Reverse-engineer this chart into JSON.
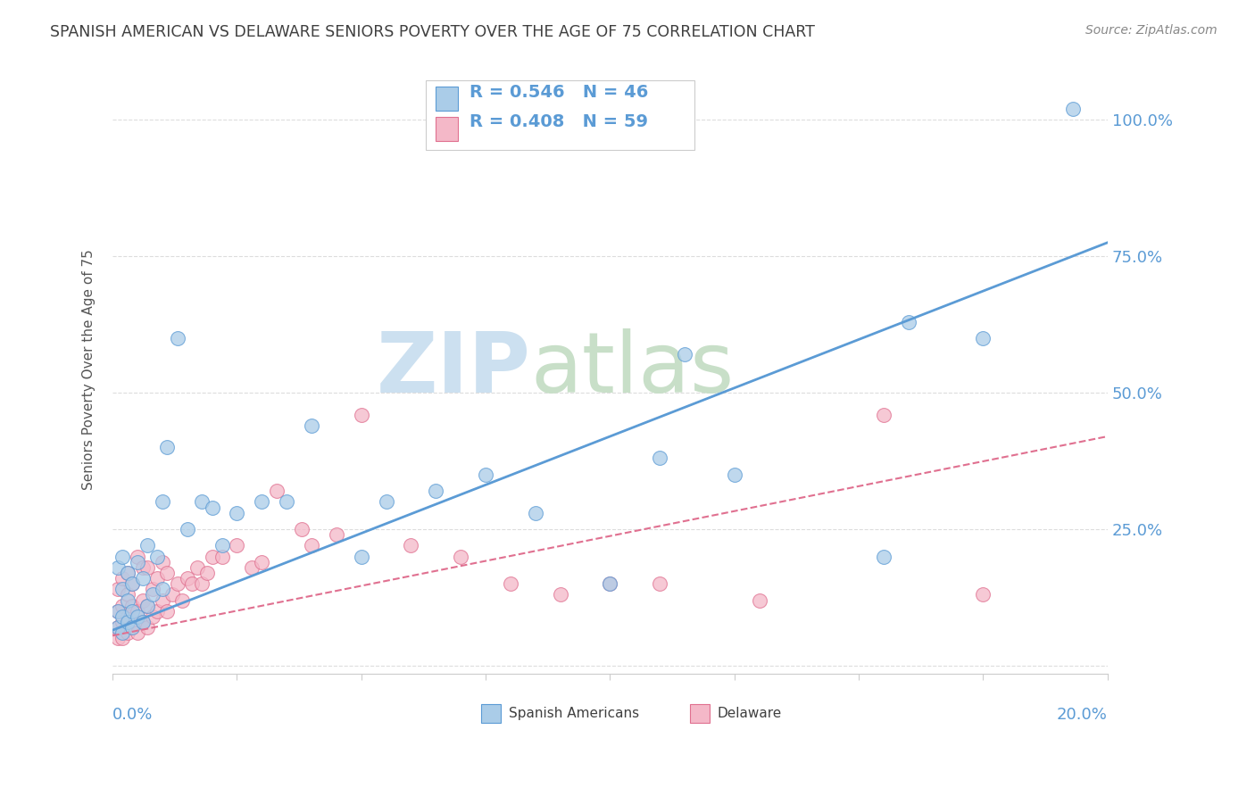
{
  "title": "SPANISH AMERICAN VS DELAWARE SENIORS POVERTY OVER THE AGE OF 75 CORRELATION CHART",
  "source": "Source: ZipAtlas.com",
  "ylabel": "Seniors Poverty Over the Age of 75",
  "blue_color": "#aacce8",
  "blue_edge_color": "#5b9bd5",
  "pink_color": "#f4b8c8",
  "pink_edge_color": "#e07090",
  "blue_line_color": "#5b9bd5",
  "pink_line_color": "#e07090",
  "axis_label_color": "#5b9bd5",
  "title_color": "#404040",
  "source_color": "#888888",
  "grid_color": "#dddddd",
  "spine_color": "#cccccc",
  "watermark_zip_color": "#cce0f0",
  "watermark_atlas_color": "#c8dfc8",
  "legend_r1": "R = 0.546",
  "legend_n1": "N = 46",
  "legend_r2": "R = 0.408",
  "legend_n2": "N = 59",
  "sp_x": [
    0.001,
    0.001,
    0.001,
    0.002,
    0.002,
    0.002,
    0.002,
    0.003,
    0.003,
    0.003,
    0.004,
    0.004,
    0.004,
    0.005,
    0.005,
    0.006,
    0.006,
    0.007,
    0.007,
    0.008,
    0.009,
    0.01,
    0.01,
    0.011,
    0.013,
    0.015,
    0.018,
    0.02,
    0.022,
    0.025,
    0.03,
    0.035,
    0.04,
    0.05,
    0.055,
    0.065,
    0.075,
    0.085,
    0.1,
    0.11,
    0.115,
    0.125,
    0.155,
    0.16,
    0.175,
    0.193
  ],
  "sp_y": [
    0.07,
    0.1,
    0.18,
    0.06,
    0.09,
    0.14,
    0.2,
    0.08,
    0.12,
    0.17,
    0.07,
    0.1,
    0.15,
    0.09,
    0.19,
    0.08,
    0.16,
    0.11,
    0.22,
    0.13,
    0.2,
    0.14,
    0.3,
    0.4,
    0.6,
    0.25,
    0.3,
    0.29,
    0.22,
    0.28,
    0.3,
    0.3,
    0.44,
    0.2,
    0.3,
    0.32,
    0.35,
    0.28,
    0.15,
    0.38,
    0.57,
    0.35,
    0.2,
    0.63,
    0.6,
    1.02
  ],
  "del_x": [
    0.001,
    0.001,
    0.001,
    0.001,
    0.002,
    0.002,
    0.002,
    0.002,
    0.003,
    0.003,
    0.003,
    0.003,
    0.004,
    0.004,
    0.004,
    0.005,
    0.005,
    0.005,
    0.006,
    0.006,
    0.006,
    0.007,
    0.007,
    0.007,
    0.008,
    0.008,
    0.009,
    0.009,
    0.01,
    0.01,
    0.011,
    0.011,
    0.012,
    0.013,
    0.014,
    0.015,
    0.016,
    0.017,
    0.018,
    0.019,
    0.02,
    0.022,
    0.025,
    0.028,
    0.03,
    0.033,
    0.038,
    0.04,
    0.045,
    0.05,
    0.06,
    0.07,
    0.08,
    0.09,
    0.1,
    0.11,
    0.13,
    0.155,
    0.175
  ],
  "del_y": [
    0.05,
    0.07,
    0.1,
    0.14,
    0.05,
    0.08,
    0.11,
    0.16,
    0.06,
    0.09,
    0.13,
    0.17,
    0.07,
    0.11,
    0.15,
    0.06,
    0.1,
    0.2,
    0.08,
    0.12,
    0.18,
    0.07,
    0.11,
    0.18,
    0.09,
    0.14,
    0.1,
    0.16,
    0.12,
    0.19,
    0.1,
    0.17,
    0.13,
    0.15,
    0.12,
    0.16,
    0.15,
    0.18,
    0.15,
    0.17,
    0.2,
    0.2,
    0.22,
    0.18,
    0.19,
    0.32,
    0.25,
    0.22,
    0.24,
    0.46,
    0.22,
    0.2,
    0.15,
    0.13,
    0.15,
    0.15,
    0.12,
    0.46,
    0.13
  ],
  "blue_line_x": [
    0.0,
    0.2
  ],
  "blue_line_y": [
    0.065,
    0.775
  ],
  "pink_line_x": [
    0.0,
    0.2
  ],
  "pink_line_y": [
    0.055,
    0.42
  ],
  "xlim": [
    0.0,
    0.2
  ],
  "ylim": [
    -0.015,
    1.1
  ],
  "ytick_vals": [
    0.0,
    0.25,
    0.5,
    0.75,
    1.0
  ],
  "ytick_labels": [
    "",
    "25.0%",
    "50.0%",
    "75.0%",
    "100.0%"
  ],
  "xtick_minor_step": 0.025
}
